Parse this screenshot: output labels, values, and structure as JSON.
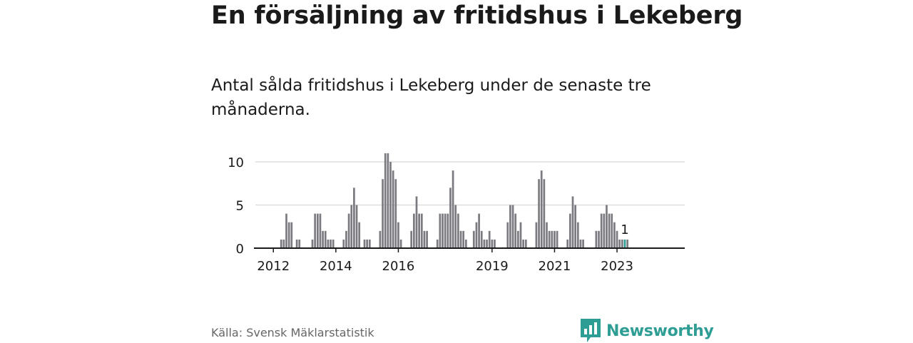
{
  "title": "En försäljning av fritidshus i Lekeberg",
  "subtitle": "Antal sålda fritidshus i Lekeberg under de senaste tre månaderna.",
  "source": "Källa: Svensk Mäklarstatistik",
  "brand": {
    "name": "Newsworthy",
    "icon": "newsworthy-logo-icon",
    "color": "#2e9e95"
  },
  "colors": {
    "bar": "#7a7a80",
    "highlight": "#2a9d93",
    "grid": "#d8d8d8",
    "axis": "#1a1a1a"
  },
  "chart_data": {
    "type": "bar",
    "title": "",
    "xlabel": "",
    "ylabel": "",
    "ylim": [
      0,
      11.5
    ],
    "yticks": [
      0,
      5,
      10
    ],
    "grid": true,
    "xticks": [
      {
        "label": "2012",
        "index": 6
      },
      {
        "label": "2014",
        "index": 30
      },
      {
        "label": "2016",
        "index": 54
      },
      {
        "label": "2019",
        "index": 90
      },
      {
        "label": "2021",
        "index": 114
      },
      {
        "label": "2023",
        "index": 138
      }
    ],
    "highlight": {
      "index": 141,
      "label": "1"
    },
    "values": [
      0,
      0,
      0,
      0,
      0,
      0,
      0,
      0,
      0,
      1,
      1,
      4,
      3,
      3,
      0,
      1,
      1,
      0,
      0,
      0,
      0,
      1,
      4,
      4,
      4,
      2,
      2,
      1,
      1,
      1,
      0,
      0,
      0,
      1,
      2,
      4,
      5,
      7,
      5,
      3,
      0,
      1,
      1,
      1,
      0,
      0,
      0,
      2,
      8,
      11,
      11,
      10,
      9,
      8,
      3,
      1,
      0,
      0,
      0,
      2,
      4,
      6,
      4,
      4,
      2,
      2,
      0,
      0,
      0,
      1,
      4,
      4,
      4,
      4,
      7,
      9,
      5,
      4,
      2,
      2,
      1,
      0,
      0,
      2,
      3,
      4,
      2,
      1,
      1,
      2,
      1,
      1,
      0,
      0,
      0,
      0,
      3,
      5,
      5,
      4,
      2,
      3,
      1,
      1,
      0,
      0,
      0,
      3,
      8,
      9,
      8,
      3,
      2,
      2,
      2,
      2,
      0,
      0,
      0,
      1,
      4,
      6,
      5,
      3,
      1,
      1,
      0,
      0,
      0,
      0,
      2,
      2,
      4,
      4,
      5,
      4,
      4,
      3,
      2,
      1,
      1,
      1,
      1
    ]
  }
}
